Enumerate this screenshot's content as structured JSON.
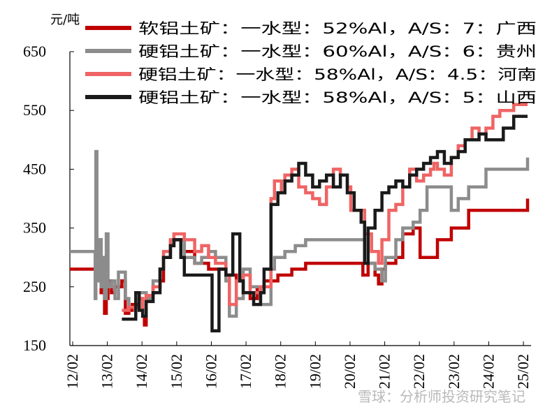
{
  "chart_data": {
    "type": "line",
    "unit_label": "元/吨",
    "y_ticks": [
      150,
      250,
      350,
      450,
      550,
      650
    ],
    "ylim": [
      150,
      650
    ],
    "x_ticks": [
      "12/02",
      "13/02",
      "14/02",
      "15/02",
      "16/02",
      "17/02",
      "18/02",
      "19/02",
      "20/02",
      "21/02",
      "22/02",
      "23/02",
      "24/02",
      "25/02"
    ],
    "xlim": [
      2012.0,
      2025.3
    ],
    "legend_position": "top",
    "grid": false,
    "watermark": "雪球：分析师投资研究笔记",
    "series": [
      {
        "name": "软铝土矿：一水型：52%Al，A/S：7：广西",
        "color": "#c00000",
        "points": [
          [
            2012.0,
            280
          ],
          [
            2012.8,
            280
          ],
          [
            2012.82,
            330
          ],
          [
            2012.9,
            240
          ],
          [
            2012.95,
            280
          ],
          [
            2013.0,
            205
          ],
          [
            2013.05,
            230
          ],
          [
            2013.1,
            260
          ],
          [
            2013.2,
            240
          ],
          [
            2013.3,
            250
          ],
          [
            2013.5,
            260
          ],
          [
            2013.6,
            205
          ],
          [
            2013.7,
            210
          ],
          [
            2013.8,
            220
          ],
          [
            2014.0,
            230
          ],
          [
            2014.1,
            200
          ],
          [
            2014.15,
            185
          ],
          [
            2014.2,
            235
          ],
          [
            2014.4,
            250
          ],
          [
            2014.6,
            260
          ],
          [
            2014.7,
            300
          ],
          [
            2014.9,
            320
          ],
          [
            2015.0,
            330
          ],
          [
            2015.3,
            310
          ],
          [
            2015.6,
            290
          ],
          [
            2016.0,
            280
          ],
          [
            2016.5,
            270
          ],
          [
            2016.8,
            260
          ],
          [
            2017.0,
            240
          ],
          [
            2017.2,
            230
          ],
          [
            2017.4,
            250
          ],
          [
            2017.6,
            260
          ],
          [
            2017.8,
            260
          ],
          [
            2018.0,
            270
          ],
          [
            2018.4,
            280
          ],
          [
            2018.8,
            290
          ],
          [
            2020.0,
            290
          ],
          [
            2020.4,
            290
          ],
          [
            2020.45,
            270
          ],
          [
            2020.6,
            290
          ],
          [
            2020.8,
            270
          ],
          [
            2020.9,
            255
          ],
          [
            2021.0,
            280
          ],
          [
            2021.1,
            290
          ],
          [
            2021.4,
            300
          ],
          [
            2021.6,
            340
          ],
          [
            2021.9,
            350
          ],
          [
            2022.1,
            300
          ],
          [
            2022.5,
            300
          ],
          [
            2022.6,
            330
          ],
          [
            2023.0,
            350
          ],
          [
            2023.5,
            380
          ],
          [
            2024.5,
            380
          ],
          [
            2025.0,
            380
          ],
          [
            2025.2,
            400
          ]
        ]
      },
      {
        "name": "硬铝土矿：一水型：60%Al，A/S：6：贵州",
        "color": "#8c8c8c",
        "points": [
          [
            2012.0,
            310
          ],
          [
            2012.7,
            310
          ],
          [
            2012.73,
            230
          ],
          [
            2012.75,
            480
          ],
          [
            2012.78,
            260
          ],
          [
            2012.85,
            330
          ],
          [
            2012.9,
            250
          ],
          [
            2012.95,
            300
          ],
          [
            2013.0,
            230
          ],
          [
            2013.05,
            340
          ],
          [
            2013.1,
            250
          ],
          [
            2013.2,
            260
          ],
          [
            2013.3,
            230
          ],
          [
            2013.4,
            275
          ],
          [
            2013.6,
            230
          ],
          [
            2013.7,
            215
          ],
          [
            2014.0,
            240
          ],
          [
            2014.2,
            230
          ],
          [
            2014.4,
            260
          ],
          [
            2014.6,
            280
          ],
          [
            2014.7,
            300
          ],
          [
            2014.9,
            320
          ],
          [
            2015.0,
            330
          ],
          [
            2015.3,
            300
          ],
          [
            2015.6,
            290
          ],
          [
            2015.8,
            300
          ],
          [
            2016.0,
            310
          ],
          [
            2016.2,
            300
          ],
          [
            2016.5,
            260
          ],
          [
            2016.6,
            200
          ],
          [
            2016.8,
            230
          ],
          [
            2017.0,
            280
          ],
          [
            2017.2,
            250
          ],
          [
            2017.5,
            220
          ],
          [
            2017.8,
            280
          ],
          [
            2017.9,
            300
          ],
          [
            2018.2,
            310
          ],
          [
            2018.5,
            320
          ],
          [
            2018.8,
            330
          ],
          [
            2020.0,
            330
          ],
          [
            2020.4,
            330
          ],
          [
            2020.5,
            290
          ],
          [
            2020.8,
            280
          ],
          [
            2021.0,
            260
          ],
          [
            2021.1,
            300
          ],
          [
            2021.4,
            330
          ],
          [
            2021.6,
            350
          ],
          [
            2021.9,
            360
          ],
          [
            2022.1,
            380
          ],
          [
            2022.3,
            420
          ],
          [
            2022.6,
            420
          ],
          [
            2022.9,
            420
          ],
          [
            2023.0,
            380
          ],
          [
            2023.2,
            400
          ],
          [
            2023.5,
            420
          ],
          [
            2024.0,
            450
          ],
          [
            2025.0,
            450
          ],
          [
            2025.2,
            470
          ]
        ]
      },
      {
        "name": "硬铝土矿：一水型：58%Al，A/S：4.5：河南",
        "color": "#ef6464",
        "points": [
          [
            2013.5,
            210
          ],
          [
            2013.7,
            215
          ],
          [
            2014.0,
            230
          ],
          [
            2014.1,
            200
          ],
          [
            2014.2,
            235
          ],
          [
            2014.4,
            250
          ],
          [
            2014.6,
            280
          ],
          [
            2014.7,
            310
          ],
          [
            2014.9,
            330
          ],
          [
            2015.0,
            340
          ],
          [
            2015.3,
            330
          ],
          [
            2015.6,
            310
          ],
          [
            2015.8,
            320
          ],
          [
            2016.0,
            300
          ],
          [
            2016.2,
            290
          ],
          [
            2016.5,
            270
          ],
          [
            2016.6,
            220
          ],
          [
            2016.8,
            260
          ],
          [
            2017.0,
            270
          ],
          [
            2017.2,
            240
          ],
          [
            2017.5,
            250
          ],
          [
            2017.8,
            400
          ],
          [
            2017.9,
            430
          ],
          [
            2018.1,
            410
          ],
          [
            2018.2,
            440
          ],
          [
            2018.4,
            450
          ],
          [
            2018.6,
            420
          ],
          [
            2018.8,
            410
          ],
          [
            2019.0,
            400
          ],
          [
            2019.2,
            390
          ],
          [
            2019.4,
            420
          ],
          [
            2019.6,
            450
          ],
          [
            2019.8,
            440
          ],
          [
            2020.0,
            420
          ],
          [
            2020.1,
            380
          ],
          [
            2020.3,
            380
          ],
          [
            2020.5,
            340
          ],
          [
            2020.7,
            310
          ],
          [
            2020.9,
            290
          ],
          [
            2021.0,
            330
          ],
          [
            2021.2,
            380
          ],
          [
            2021.4,
            390
          ],
          [
            2021.6,
            420
          ],
          [
            2021.8,
            450
          ],
          [
            2022.0,
            430
          ],
          [
            2022.2,
            440
          ],
          [
            2022.4,
            450
          ],
          [
            2022.5,
            460
          ],
          [
            2022.6,
            450
          ],
          [
            2022.8,
            440
          ],
          [
            2023.0,
            470
          ],
          [
            2023.2,
            490
          ],
          [
            2023.4,
            500
          ],
          [
            2023.6,
            520
          ],
          [
            2023.8,
            510
          ],
          [
            2024.0,
            520
          ],
          [
            2024.2,
            540
          ],
          [
            2024.4,
            550
          ],
          [
            2024.6,
            550
          ],
          [
            2024.8,
            560
          ],
          [
            2025.0,
            560
          ],
          [
            2025.2,
            560
          ]
        ]
      },
      {
        "name": "硬铝土矿：一水型：58%Al，A/S：5：山西",
        "color": "#1a1a1a",
        "points": [
          [
            2013.5,
            195
          ],
          [
            2013.8,
            195
          ],
          [
            2013.9,
            240
          ],
          [
            2014.0,
            210
          ],
          [
            2014.1,
            200
          ],
          [
            2014.2,
            225
          ],
          [
            2014.4,
            240
          ],
          [
            2014.6,
            280
          ],
          [
            2014.7,
            300
          ],
          [
            2014.9,
            320
          ],
          [
            2015.0,
            330
          ],
          [
            2015.2,
            300
          ],
          [
            2015.3,
            270
          ],
          [
            2015.8,
            270
          ],
          [
            2016.0,
            270
          ],
          [
            2016.1,
            175
          ],
          [
            2016.3,
            280
          ],
          [
            2016.5,
            270
          ],
          [
            2016.7,
            340
          ],
          [
            2016.9,
            260
          ],
          [
            2017.0,
            240
          ],
          [
            2017.3,
            220
          ],
          [
            2017.5,
            240
          ],
          [
            2017.6,
            280
          ],
          [
            2017.8,
            390
          ],
          [
            2018.0,
            410
          ],
          [
            2018.2,
            430
          ],
          [
            2018.4,
            440
          ],
          [
            2018.6,
            460
          ],
          [
            2018.8,
            440
          ],
          [
            2019.0,
            420
          ],
          [
            2019.2,
            430
          ],
          [
            2019.4,
            440
          ],
          [
            2019.6,
            420
          ],
          [
            2019.8,
            440
          ],
          [
            2020.0,
            410
          ],
          [
            2020.2,
            380
          ],
          [
            2020.4,
            360
          ],
          [
            2020.5,
            290
          ],
          [
            2020.6,
            350
          ],
          [
            2020.8,
            380
          ],
          [
            2021.0,
            410
          ],
          [
            2021.2,
            420
          ],
          [
            2021.4,
            430
          ],
          [
            2021.6,
            420
          ],
          [
            2021.8,
            440
          ],
          [
            2022.0,
            450
          ],
          [
            2022.2,
            460
          ],
          [
            2022.4,
            470
          ],
          [
            2022.6,
            480
          ],
          [
            2022.8,
            460
          ],
          [
            2023.0,
            470
          ],
          [
            2023.2,
            480
          ],
          [
            2023.4,
            500
          ],
          [
            2023.6,
            500
          ],
          [
            2023.8,
            510
          ],
          [
            2024.0,
            500
          ],
          [
            2024.2,
            500
          ],
          [
            2024.5,
            520
          ],
          [
            2024.8,
            540
          ],
          [
            2025.0,
            540
          ],
          [
            2025.2,
            540
          ]
        ]
      }
    ]
  }
}
